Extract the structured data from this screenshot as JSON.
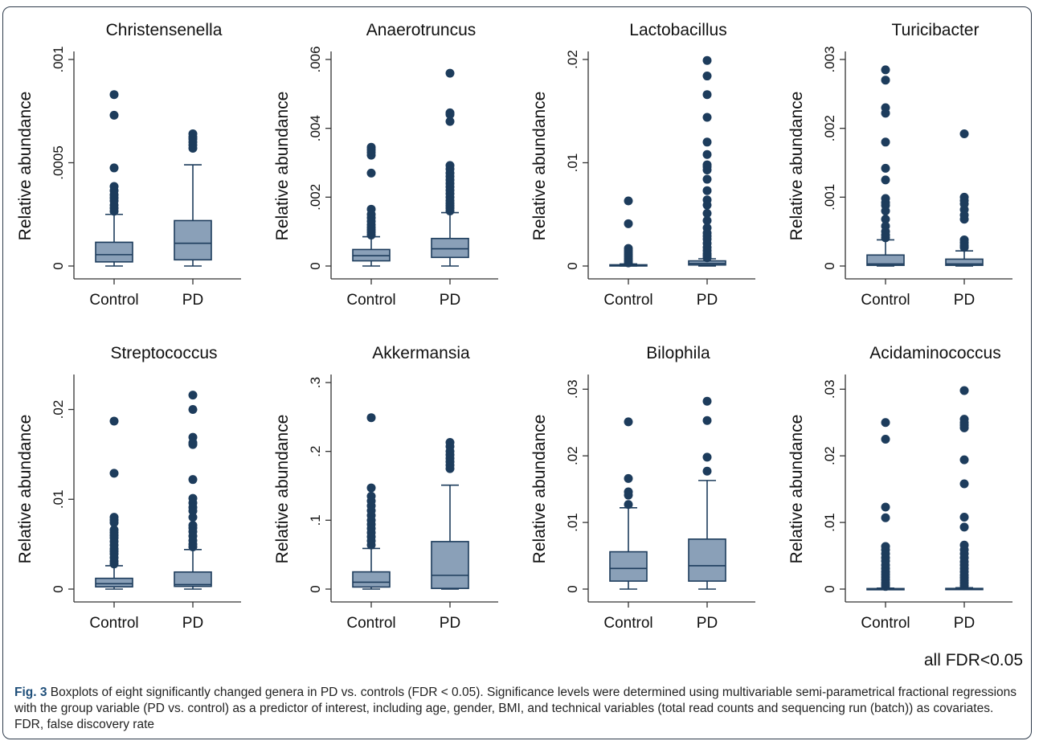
{
  "footnote": "all FDR<0.05",
  "caption": {
    "label": "Fig. 3",
    "text": " Boxplots of eight significantly changed genera in PD vs. controls (FDR < 0.05). Significance levels were determined using multivariable semi-parametrical fractional regressions with the group variable (PD vs. control) as a predictor of interest, including age, gender, BMI, and technical variables (total read counts and sequencing run (batch)) as covariates. FDR, false discovery rate"
  },
  "style": {
    "box_fill": "#8aa0b8",
    "box_stroke": "#1d3c5c",
    "marker": "#1d3c5c",
    "axis": "#333333"
  },
  "chart_data": [
    {
      "type": "box",
      "title": "Christensenella",
      "ylabel": "Relative abundance",
      "categories": [
        "Control",
        "PD"
      ],
      "ylim": [
        0,
        0.001
      ],
      "yticks": [
        0,
        0.0005,
        0.001
      ],
      "yticklabels": [
        "0",
        ".0005",
        ".001"
      ],
      "boxes": [
        {
          "min": 0,
          "q1": 2e-05,
          "median": 5.5e-05,
          "q3": 0.000115,
          "max": 0.00025,
          "outliers": [
            0.00083,
            0.00073,
            0.000475,
            0.000385,
            0.000365,
            0.000345,
            0.00033,
            0.000315,
            0.000295,
            0.00028,
            0.000265
          ]
        },
        {
          "min": 0,
          "q1": 3e-05,
          "median": 0.00011,
          "q3": 0.00022,
          "max": 0.00049,
          "outliers": [
            0.00064,
            0.000625,
            0.000615,
            0.0006,
            0.000585,
            0.00057
          ]
        }
      ]
    },
    {
      "type": "box",
      "title": "Anaerotruncus",
      "ylabel": "Relative abundance",
      "categories": [
        "Control",
        "PD"
      ],
      "ylim": [
        0,
        0.006
      ],
      "yticks": [
        0,
        0.002,
        0.004,
        0.006
      ],
      "yticklabels": [
        "0",
        ".002",
        ".004",
        ".006"
      ],
      "boxes": [
        {
          "min": 0,
          "q1": 0.00015,
          "median": 0.0003,
          "q3": 0.00048,
          "max": 0.00085,
          "outliers": [
            0.00345,
            0.00338,
            0.0033,
            0.00322,
            0.0027,
            0.00165,
            0.0015,
            0.0014,
            0.0013,
            0.0012,
            0.00112,
            0.00105,
            0.00098,
            0.0009
          ]
        },
        {
          "min": 0,
          "q1": 0.00025,
          "median": 0.0005,
          "q3": 0.0008,
          "max": 0.00155,
          "outliers": [
            0.0056,
            0.00445,
            0.0044,
            0.0042,
            0.00292,
            0.00282,
            0.0027,
            0.0026,
            0.0025,
            0.0024,
            0.0023,
            0.0022,
            0.0021,
            0.002,
            0.0019,
            0.00182,
            0.00175,
            0.00168,
            0.0016
          ]
        }
      ]
    },
    {
      "type": "box",
      "title": "Lactobacillus",
      "ylabel": "Relative abundance",
      "categories": [
        "Control",
        "PD"
      ],
      "ylim": [
        0,
        0.02
      ],
      "yticks": [
        0,
        0.01,
        0.02
      ],
      "yticklabels": [
        "0",
        ".01",
        ".02"
      ],
      "boxes": [
        {
          "min": 0,
          "q1": 2e-05,
          "median": 6e-05,
          "q3": 0.00012,
          "max": 0.0002,
          "outliers": [
            0.0063,
            0.0041,
            0.0017,
            0.0015,
            0.0013,
            0.0011,
            0.0009,
            0.0007,
            0.0005,
            0.0003
          ]
        },
        {
          "min": 0,
          "q1": 0.0001,
          "median": 0.00025,
          "q3": 0.0005,
          "max": 0.0007,
          "outliers": [
            0.0199,
            0.0184,
            0.0166,
            0.0144,
            0.012,
            0.0108,
            0.0098,
            0.0096,
            0.0093,
            0.0084,
            0.0073,
            0.0064,
            0.0059,
            0.0051,
            0.0044,
            0.0037,
            0.0032,
            0.0029,
            0.0026,
            0.0022,
            0.0018,
            0.0015,
            0.0012,
            0.001,
            0.0008
          ]
        }
      ]
    },
    {
      "type": "box",
      "title": "Turicibacter",
      "ylabel": "Relative abundance",
      "categories": [
        "Control",
        "PD"
      ],
      "ylim": [
        0,
        0.003
      ],
      "yticks": [
        0,
        0.001,
        0.002,
        0.003
      ],
      "yticklabels": [
        "0",
        ".001",
        ".002",
        ".003"
      ],
      "boxes": [
        {
          "min": 0,
          "q1": 1e-05,
          "median": 3e-05,
          "q3": 0.00016,
          "max": 0.00038,
          "outliers": [
            0.00285,
            0.0027,
            0.0023,
            0.00222,
            0.0018,
            0.00142,
            0.00125,
            0.00098,
            0.00092,
            0.00088,
            0.0008,
            0.00068,
            0.00058,
            0.0005,
            0.00045,
            0.00041
          ]
        },
        {
          "min": 0,
          "q1": 1e-05,
          "median": 3e-05,
          "q3": 0.0001,
          "max": 0.00022,
          "outliers": [
            0.00192,
            0.001,
            0.00095,
            0.0009,
            0.00082,
            0.00074,
            0.00068,
            0.00038,
            0.00034,
            0.0003,
            0.00027
          ]
        }
      ]
    },
    {
      "type": "box",
      "title": "Streptococcus",
      "ylabel": "Relative abundance",
      "categories": [
        "Control",
        "PD"
      ],
      "ylim": [
        0,
        0.023
      ],
      "yticks": [
        0,
        0.01,
        0.02
      ],
      "yticklabels": [
        "0",
        ".01",
        ".02"
      ],
      "boxes": [
        {
          "min": 0,
          "q1": 0.00025,
          "median": 0.0006,
          "q3": 0.0012,
          "max": 0.0026,
          "outliers": [
            0.0187,
            0.0129,
            0.008,
            0.0077,
            0.0074,
            0.0066,
            0.0063,
            0.006,
            0.0057,
            0.0053,
            0.0049,
            0.0045,
            0.0042,
            0.0039,
            0.0035,
            0.0031,
            0.0028
          ]
        },
        {
          "min": 0,
          "q1": 0.0003,
          "median": 0.0005,
          "q3": 0.0019,
          "max": 0.0044,
          "outliers": [
            0.0216,
            0.02,
            0.0169,
            0.0163,
            0.0161,
            0.0122,
            0.0101,
            0.0096,
            0.0091,
            0.0087,
            0.008,
            0.0071,
            0.0068,
            0.0064,
            0.0059,
            0.0054,
            0.005,
            0.0047
          ]
        }
      ]
    },
    {
      "type": "box",
      "title": "Akkermansia",
      "ylabel": "Relative abundance",
      "categories": [
        "Control",
        "PD"
      ],
      "ylim": [
        0,
        0.3
      ],
      "yticks": [
        0,
        0.1,
        0.2,
        0.3
      ],
      "yticklabels": [
        "0",
        ".1",
        ".2",
        ".3"
      ],
      "boxes": [
        {
          "min": 0,
          "q1": 0.003,
          "median": 0.01,
          "q3": 0.025,
          "max": 0.059,
          "outliers": [
            0.249,
            0.147,
            0.135,
            0.128,
            0.121,
            0.114,
            0.107,
            0.1,
            0.094,
            0.088,
            0.082,
            0.076,
            0.07,
            0.064
          ]
        },
        {
          "min": 0,
          "q1": 0.001,
          "median": 0.02,
          "q3": 0.069,
          "max": 0.151,
          "outliers": [
            0.213,
            0.207,
            0.2,
            0.195,
            0.19,
            0.185,
            0.18,
            0.175
          ]
        }
      ]
    },
    {
      "type": "box",
      "title": "Bilophila",
      "ylabel": "Relative abundance",
      "categories": [
        "Control",
        "PD"
      ],
      "ylim": [
        0,
        0.031
      ],
      "yticks": [
        0,
        0.01,
        0.02,
        0.03
      ],
      "yticklabels": [
        "0",
        ".01",
        ".02",
        ".03"
      ],
      "boxes": [
        {
          "min": 0,
          "q1": 0.0012,
          "median": 0.0031,
          "q3": 0.0056,
          "max": 0.0122,
          "outliers": [
            0.0251,
            0.0166,
            0.0146,
            0.0141,
            0.0127
          ]
        },
        {
          "min": 0,
          "q1": 0.0012,
          "median": 0.0035,
          "q3": 0.0075,
          "max": 0.0163,
          "outliers": [
            0.0282,
            0.0253,
            0.0198,
            0.0177
          ]
        }
      ]
    },
    {
      "type": "box",
      "title": "Acidaminococcus",
      "ylabel": "Relative abundance",
      "categories": [
        "Control",
        "PD"
      ],
      "ylim": [
        0,
        0.031
      ],
      "yticks": [
        0,
        0.01,
        0.02,
        0.03
      ],
      "yticklabels": [
        "0",
        ".01",
        ".02",
        ".03"
      ],
      "boxes": [
        {
          "min": 0,
          "q1": 1e-05,
          "median": 3e-05,
          "q3": 8e-05,
          "max": 0.00015,
          "outliers": [
            0.025,
            0.0225,
            0.0123,
            0.0107,
            0.0064,
            0.0059,
            0.0053,
            0.0047,
            0.0042,
            0.0036,
            0.0031,
            0.0026,
            0.0022,
            0.0018,
            0.0014,
            0.001,
            0.0007,
            0.0004
          ]
        },
        {
          "min": 0,
          "q1": 1e-05,
          "median": 3e-05,
          "q3": 0.0001,
          "max": 0.0002,
          "outliers": [
            0.0298,
            0.0255,
            0.025,
            0.0246,
            0.0242,
            0.0194,
            0.0158,
            0.0108,
            0.0093,
            0.0066,
            0.0059,
            0.0053,
            0.0047,
            0.0041,
            0.0036,
            0.0031,
            0.0026,
            0.0021,
            0.0017,
            0.0013,
            0.0009,
            0.0005
          ]
        }
      ]
    }
  ]
}
